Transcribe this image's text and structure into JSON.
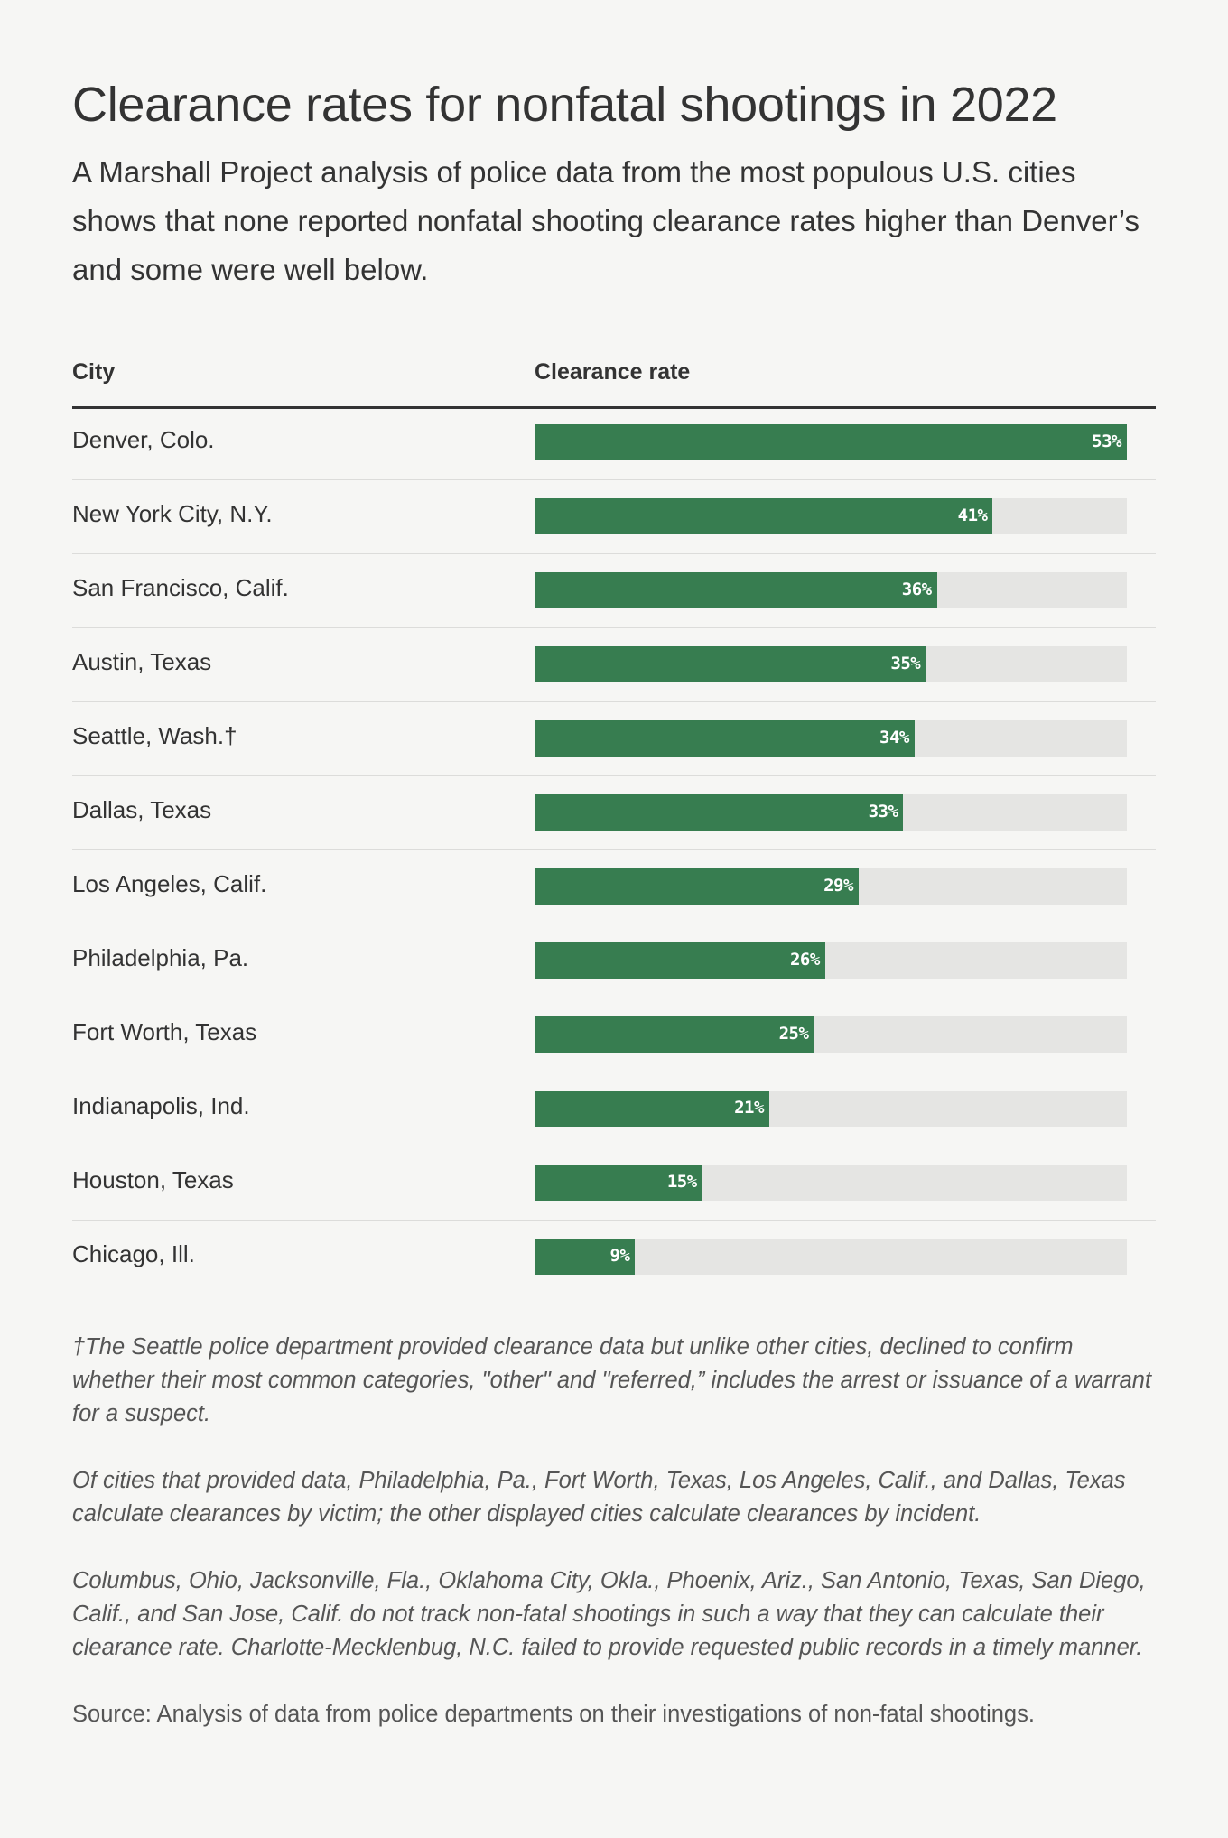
{
  "title": "Clearance rates for nonfatal shootings in 2022",
  "subtitle": "A Marshall Project analysis of police data from the most populous U.S. cities shows that none reported nonfatal shooting clearance rates higher than Denver’s and some were well below.",
  "table": {
    "col_city": "City",
    "col_rate": "Clearance rate"
  },
  "colors": {
    "bar": "#377d50",
    "track": "#e5e5e3",
    "background": "#f6f6f4"
  },
  "chart_data": {
    "type": "bar",
    "orientation": "horizontal",
    "title": "Clearance rates for nonfatal shootings in 2022",
    "xlim": [
      0,
      53
    ],
    "categories": [
      "Denver, Colo.",
      "New York City, N.Y.",
      "San Francisco, Calif.",
      "Austin, Texas",
      "Seattle, Wash.†",
      "Dallas, Texas",
      "Los Angeles, Calif.",
      "Philadelphia, Pa.",
      "Fort Worth, Texas",
      "Indianapolis, Ind.",
      "Houston, Texas",
      "Chicago, Ill."
    ],
    "values": [
      53,
      41,
      36,
      35,
      34,
      33,
      29,
      26,
      25,
      21,
      15,
      9
    ],
    "labels": [
      "53%",
      "41%",
      "36%",
      "35%",
      "34%",
      "33%",
      "29%",
      "26%",
      "25%",
      "21%",
      "15%",
      "9%"
    ]
  },
  "notes": [
    "†The Seattle police department provided clearance data but unlike other cities, declined to confirm whether their most common categories, \"other\" and \"referred,” includes the arrest or issuance of a warrant for a suspect.",
    "Of cities that provided data, Philadelphia, Pa., Fort Worth, Texas, Los Angeles, Calif., and Dallas, Texas calculate clearances by victim; the other displayed cities calculate clearances by incident.",
    "Columbus, Ohio, Jacksonville, Fla., Oklahoma City, Okla., Phoenix, Ariz., San Antonio, Texas, San Diego, Calif., and San Jose, Calif. do not track non-fatal shootings in such a way that they can calculate their clearance rate. Charlotte-Mecklenbug, N.C. failed to provide requested public records in a timely manner."
  ],
  "source": "Source: Analysis of data from police departments on their investigations of non-fatal shootings."
}
